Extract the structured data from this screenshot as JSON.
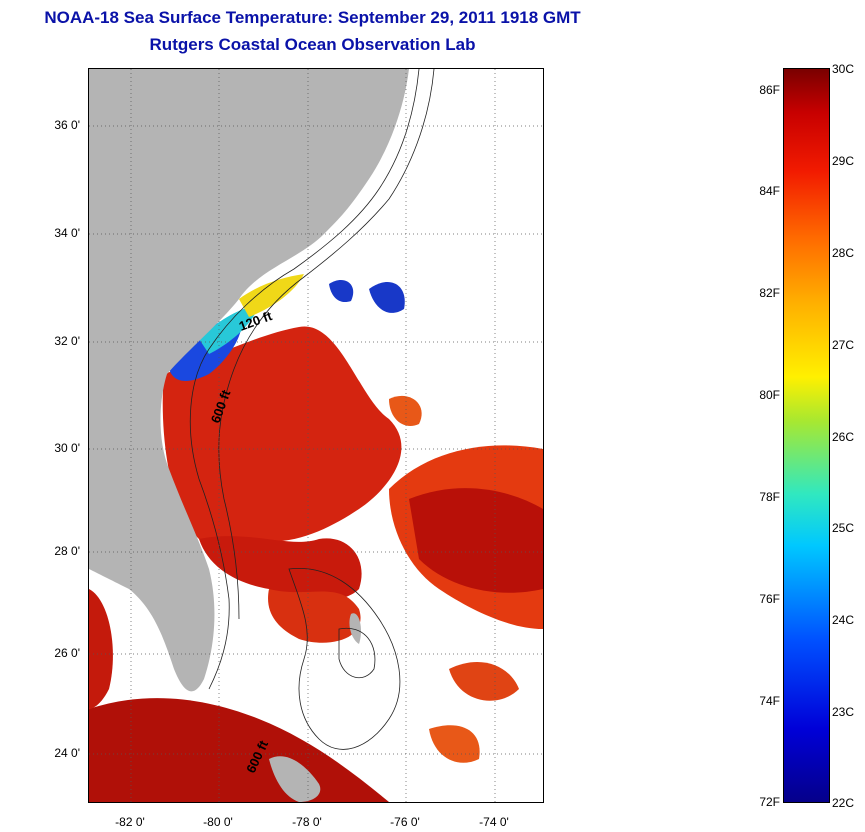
{
  "header": {
    "title": "NOAA-18 Sea Surface Temperature:  September 29, 2011 1918 GMT",
    "subtitle": "Rutgers Coastal Ocean Observation Lab"
  },
  "map": {
    "lat_ticks": [
      "36 0'",
      "34 0'",
      "32 0'",
      "30 0'",
      "28 0'",
      "26 0'",
      "24 0'"
    ],
    "lon_ticks": [
      "-82 0'",
      "-80 0'",
      "-78 0'",
      "-76 0'",
      "-74 0'"
    ],
    "contour_labels": [
      "120 ft",
      "600 ft",
      "600 ft"
    ],
    "colors": {
      "land": "#b4b4b4",
      "warm": "#d81c08",
      "hot": "#a80808",
      "cool": "#1030d8"
    }
  },
  "colorbar": {
    "fahrenheit": [
      "86F",
      "84F",
      "82F",
      "80F",
      "78F",
      "76F",
      "74F",
      "72F"
    ],
    "celsius": [
      "30C",
      "29C",
      "28C",
      "27C",
      "26C",
      "25C",
      "24C",
      "23C",
      "22C"
    ]
  }
}
